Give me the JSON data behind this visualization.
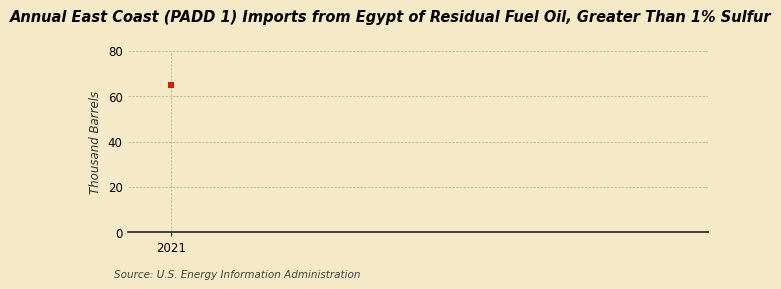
{
  "title": "Annual East Coast (PADD 1) Imports from Egypt of Residual Fuel Oil, Greater Than 1% Sulfur",
  "ylabel": "Thousand Barrels",
  "source": "Source: U.S. Energy Information Administration",
  "x_values": [
    2021
  ],
  "y_values": [
    65
  ],
  "xlim": [
    2020.6,
    2026.0
  ],
  "ylim": [
    0,
    80
  ],
  "yticks": [
    0,
    20,
    40,
    60,
    80
  ],
  "xticks": [
    2021
  ],
  "marker_color": "#cc2200",
  "marker_size": 4,
  "bg_color": "#f5e9c8",
  "grid_color": "#aaaaaa",
  "title_fontsize": 10.5,
  "label_fontsize": 8.5,
  "tick_fontsize": 8.5,
  "source_fontsize": 7.5
}
